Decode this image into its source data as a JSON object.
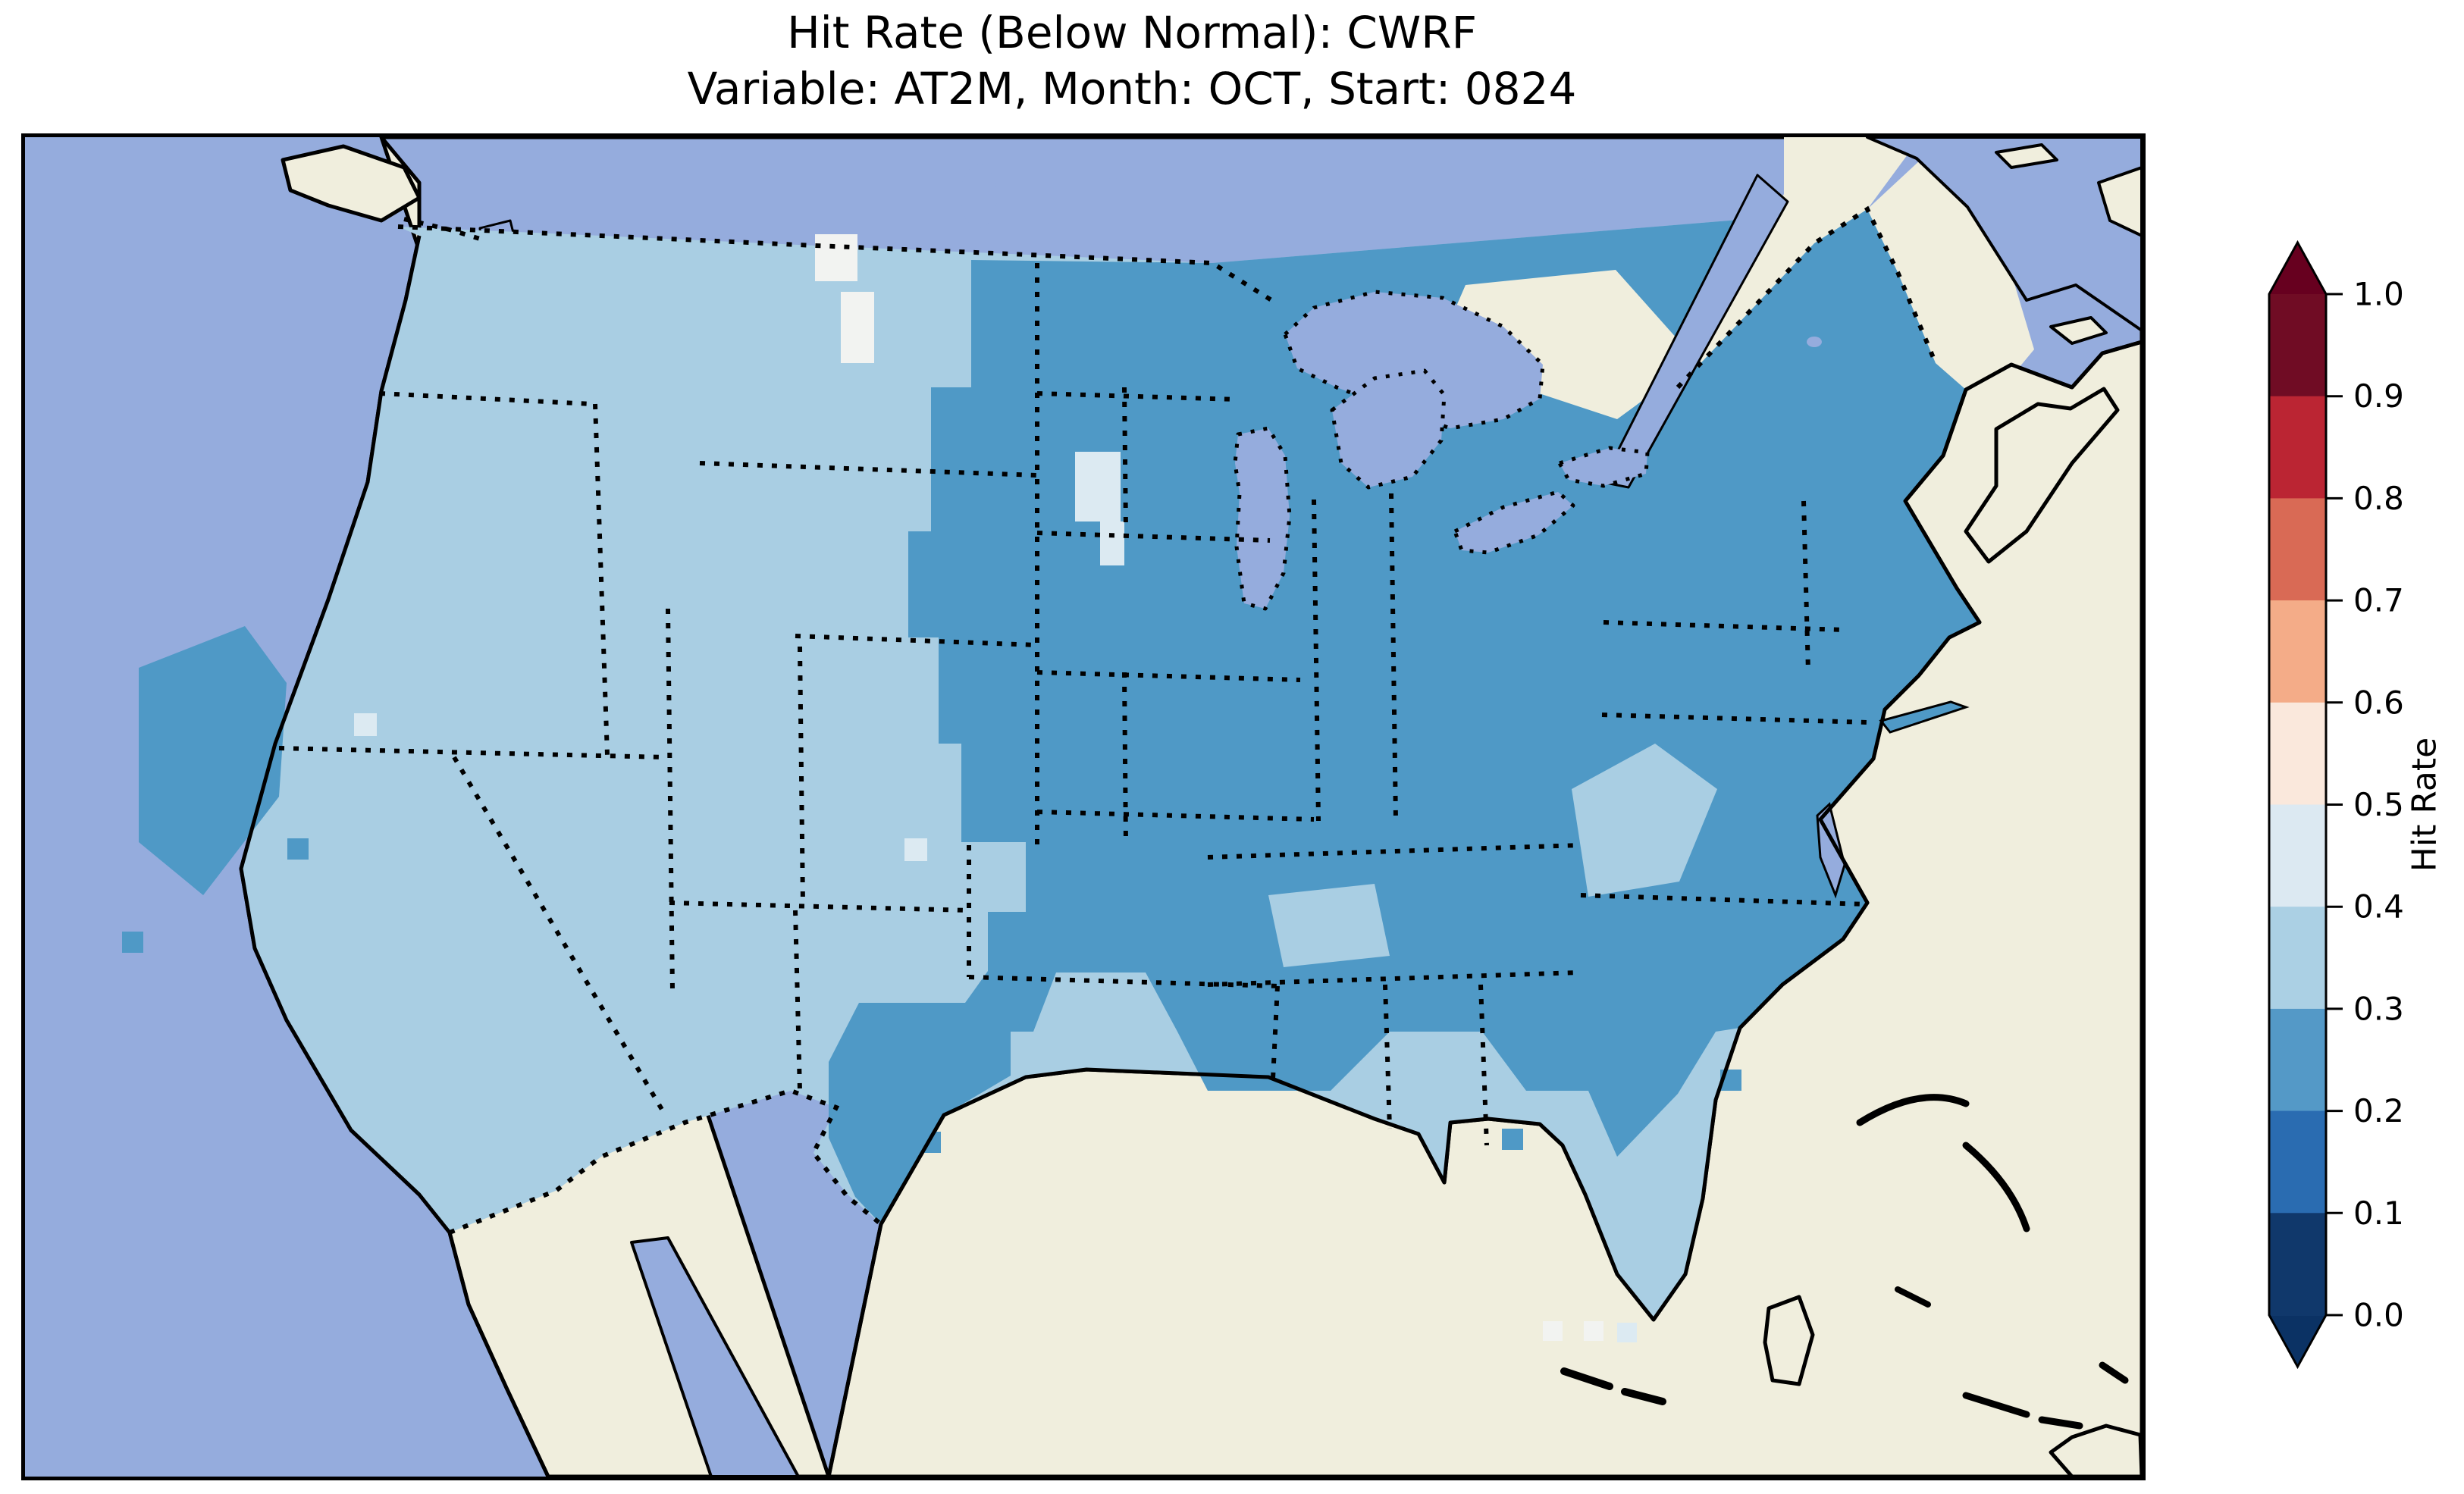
{
  "figure": {
    "title_line1": "Hit Rate (Below Normal): CWRF",
    "title_line2": "Variable: AT2M, Month: OCT, Start: 0824"
  },
  "colorbar": {
    "label": "Hit Rate",
    "ticks": [
      "1.0",
      "0.9",
      "0.8",
      "0.7",
      "0.6",
      "0.5",
      "0.4",
      "0.3",
      "0.2",
      "0.1",
      "0.0"
    ],
    "bin_colors_top_to_bottom": [
      "#700c24",
      "#bb2533",
      "#d96a55",
      "#f4ac88",
      "#fae8dc",
      "#dce9f2",
      "#abd0e4",
      "#5499c7",
      "#2a6cb1",
      "#10386b"
    ],
    "arrow_over_color": "#67001f",
    "arrow_under_color": "#0b3264",
    "outline_color": "#000000"
  },
  "colors": {
    "ocean": "#95acdd",
    "land": "#f0eedd",
    "cell_light": "#a9cee3",
    "cell_medium": "#4f99c6",
    "cell_pale": "#dceaf2",
    "cell_white": "#f2f3f1",
    "coast": "#000000"
  },
  "chart_data": {
    "type": "choropleth_map",
    "title": "Hit Rate (Below Normal): CWRF",
    "subtitle": "Variable: AT2M, Month: OCT, Start: 0824",
    "metric": "Hit Rate (Below Normal)",
    "model": "CWRF",
    "variable": "AT2M",
    "month": "OCT",
    "start": "0824",
    "region": "Continental United States with surrounding Canada, Mexico, Atlantic and Pacific",
    "colorbar": {
      "label": "Hit Rate",
      "range": [
        0.0,
        1.0
      ],
      "tick_step": 0.1,
      "extend": "both",
      "colormap": "RdBu_r, 10 discrete bins, dark blue at 0.0 to dark red at 1.0",
      "bin_edges": [
        0.0,
        0.1,
        0.2,
        0.3,
        0.4,
        0.5,
        0.6,
        0.7,
        0.8,
        0.9,
        1.0
      ]
    },
    "values_summary": [
      {
        "region": "Pacific Northwest, Great Basin, Rockies, western Great Plains, Kansas, west Texas panhandle",
        "hit_rate_bin": "0.3-0.4"
      },
      {
        "region": "Upper Midwest, Corn Belt, Ohio Valley, Northeast, New England, Mid-Atlantic, interior South, Appalachians",
        "hit_rate_bin": "0.2-0.3"
      },
      {
        "region": "Central and east Texas, Oklahoma, Arkansas, Missouri",
        "hit_rate_bin": "0.2-0.3"
      },
      {
        "region": "Northern California interior patch",
        "hit_rate_bin": "0.2-0.3"
      },
      {
        "region": "Florida peninsula, Gulf Coast strip, southern Alabama-Georgia",
        "hit_rate_bin": "0.3-0.4"
      },
      {
        "region": "Scattered cells in Montana and near Great Lakes",
        "hit_rate_bin": "0.4-0.6"
      },
      {
        "region": "Scattered near-white cells in Montana and south Florida",
        "hit_rate_bin": "0.5-0.6"
      }
    ],
    "layout": {
      "colorbar_position": "right",
      "grid": false,
      "state_borders": "dotted",
      "coastlines": "solid black"
    }
  }
}
